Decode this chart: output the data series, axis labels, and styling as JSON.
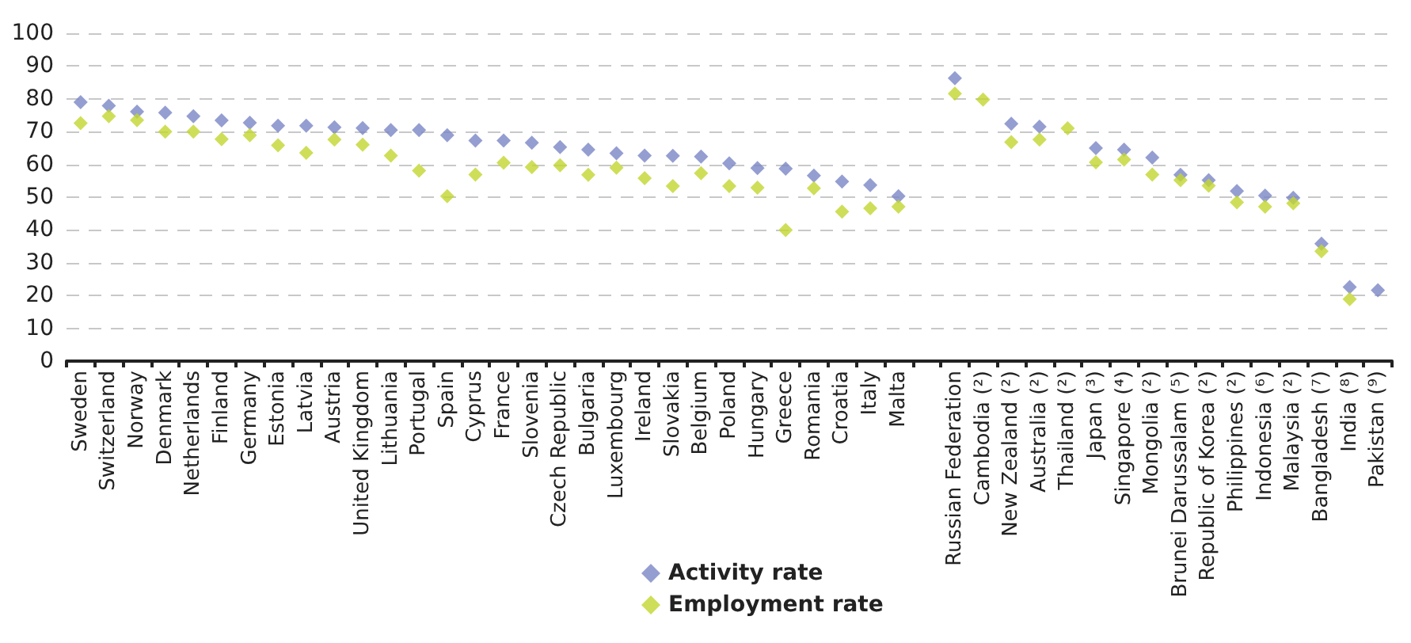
{
  "chart_data": {
    "type": "scatter",
    "categories": [
      "Sweden",
      "Switzerland",
      "Norway",
      "Denmark",
      "Netherlands",
      "Finland",
      "Germany",
      "Estonia",
      "Latvia",
      "Austria",
      "United Kingdom",
      "Lithuania",
      "Portugal",
      "Spain",
      "Cyprus",
      "France",
      "Slovenia",
      "Czech Republic",
      "Bulgaria",
      "Luxembourg",
      "Ireland",
      "Slovakia",
      "Belgium",
      "Poland",
      "Hungary",
      "Greece",
      "Romania",
      "Croatia",
      "Italy",
      "Malta",
      null,
      "Russian Federation",
      "Cambodia (²)",
      "New Zealand (²)",
      "Australia (²)",
      "Thailand (²)",
      "Japan (³)",
      "Singapore (⁴)",
      "Mongolia (²)",
      "Brunei Darussalam (⁵)",
      "Republic of Korea (²)",
      "Philippines (²)",
      "Indonesia (⁶)",
      "Malaysia (²)",
      "Bangladesh (⁷)",
      "India (⁸)",
      "Pakistan (⁹)"
    ],
    "series": [
      {
        "name": "Activity rate",
        "color": "#7b86c6",
        "values": [
          79.0,
          77.9,
          76.1,
          75.8,
          74.7,
          73.4,
          72.7,
          71.8,
          71.8,
          71.3,
          71.1,
          70.5,
          70.5,
          68.9,
          67.3,
          67.3,
          66.6,
          65.3,
          64.5,
          63.4,
          62.7,
          62.6,
          62.4,
          60.3,
          58.9,
          58.7,
          56.6,
          54.8,
          53.7,
          50.3,
          null,
          86.3,
          null,
          72.4,
          71.5,
          null,
          65.0,
          64.5,
          62.1,
          56.8,
          55.2,
          51.9,
          50.5,
          49.8,
          35.8,
          22.6,
          21.6
        ]
      },
      {
        "name": "Employment rate",
        "color": "#c3d62e",
        "values": [
          72.6,
          74.7,
          73.5,
          70.0,
          70.0,
          67.7,
          68.9,
          65.8,
          63.5,
          67.6,
          66.0,
          62.7,
          58.1,
          50.3,
          56.9,
          60.5,
          59.2,
          59.7,
          56.8,
          59.0,
          55.8,
          53.4,
          57.3,
          53.4,
          52.9,
          40.0,
          52.7,
          45.6,
          46.6,
          47.1,
          null,
          81.6,
          79.8,
          66.8,
          67.6,
          71.0,
          60.6,
          61.5,
          56.9,
          55.2,
          53.5,
          48.4,
          47.1,
          48.1,
          33.5,
          18.9,
          null
        ]
      }
    ],
    "ylim": [
      0,
      100
    ],
    "yticks": [
      0,
      10,
      20,
      30,
      40,
      50,
      60,
      70,
      80,
      90,
      100
    ],
    "grid": "y",
    "legend": "bottom",
    "marker": "diamond"
  }
}
